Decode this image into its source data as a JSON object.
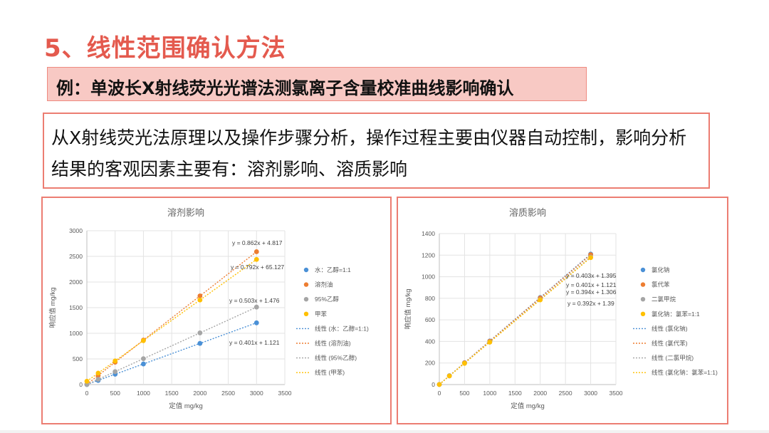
{
  "slide": {
    "title": "5、线性范围确认方法",
    "subtitle": "例：单波长X射线荧光光谱法测氯离子含量校准曲线影响确认",
    "description": "从X射线荧光法原理以及操作步骤分析，操作过程主要由仪器自动控制，影响分析结果的客观因素主要有：溶剂影响、溶质影响"
  },
  "chart_data": [
    {
      "type": "scatter",
      "title": "溶剂影响",
      "xlabel": "定值 mg/kg",
      "ylabel": "响应值 mg/kg",
      "xlim": [
        0,
        3500
      ],
      "ylim": [
        0,
        3000
      ],
      "xticks": [
        0,
        500,
        1000,
        1500,
        2000,
        2500,
        3000,
        3500
      ],
      "yticks": [
        0,
        500,
        1000,
        1500,
        2000,
        2500,
        3000
      ],
      "grid": true,
      "legend": "right",
      "series": [
        {
          "name": "水：乙醇=1:1",
          "color": "#4a90d6",
          "x": [
            0,
            200,
            500,
            1000,
            2000,
            3000
          ],
          "y": [
            1,
            81,
            202,
            402,
            803,
            1204
          ],
          "fit": {
            "slope": 0.401,
            "intercept": 1.121,
            "label": "y = 0.401x + 1.121",
            "legend": "线性 (水：乙醇=1:1)"
          }
        },
        {
          "name": "溶剂油",
          "color": "#ed7d31",
          "x": [
            0,
            200,
            500,
            1000,
            2000,
            3000
          ],
          "y": [
            5,
            177,
            436,
            867,
            1729,
            2591
          ],
          "fit": {
            "slope": 0.862,
            "intercept": 4.817,
            "label": "y = 0.862x + 4.817",
            "legend": "线性 (溶剂油)"
          }
        },
        {
          "name": "95%乙醇",
          "color": "#a5a5a5",
          "x": [
            0,
            200,
            500,
            1000,
            2000,
            3000
          ],
          "y": [
            1,
            102,
            253,
            505,
            1008,
            1511
          ],
          "fit": {
            "slope": 0.503,
            "intercept": 1.476,
            "label": "y = 0.503x + 1.476",
            "legend": "线性 (95%乙醇)"
          }
        },
        {
          "name": "甲苯",
          "color": "#ffc000",
          "x": [
            0,
            200,
            500,
            1000,
            2000,
            3000
          ],
          "y": [
            65,
            224,
            461,
            857,
            1649,
            2441
          ],
          "fit": {
            "slope": 0.792,
            "intercept": 65.127,
            "label": "y = 0.792x + 65.127",
            "legend": "线性 (甲苯)"
          }
        }
      ]
    },
    {
      "type": "scatter",
      "title": "溶质影响",
      "xlabel": "定值 mg/kg",
      "ylabel": "响应值 mg/kg",
      "xlim": [
        0,
        3500
      ],
      "ylim": [
        0,
        1400
      ],
      "xticks": [
        0,
        500,
        1000,
        1500,
        2000,
        2500,
        3000,
        3500
      ],
      "yticks": [
        0,
        200,
        400,
        600,
        800,
        1000,
        1200,
        1400
      ],
      "grid": true,
      "legend": "right",
      "series": [
        {
          "name": "氯化钠",
          "color": "#4a90d6",
          "x": [
            0,
            200,
            500,
            1000,
            2000,
            3000
          ],
          "y": [
            1,
            82,
            203,
            404,
            807,
            1210
          ],
          "fit": {
            "slope": 0.403,
            "intercept": 1.395,
            "label": "y = 0.403x + 1.395",
            "legend": "线性 (氯化钠)"
          }
        },
        {
          "name": "氯代苯",
          "color": "#ed7d31",
          "x": [
            0,
            200,
            500,
            1000,
            2000,
            3000
          ],
          "y": [
            1,
            81,
            202,
            402,
            803,
            1204
          ],
          "fit": {
            "slope": 0.401,
            "intercept": 1.121,
            "label": "y = 0.401x + 1.121",
            "legend": "线性 (氯代苯)"
          }
        },
        {
          "name": "二氯甲烷",
          "color": "#a5a5a5",
          "x": [
            0,
            200,
            500,
            1000,
            2000,
            3000
          ],
          "y": [
            1,
            80,
            198,
            395,
            789,
            1183
          ],
          "fit": {
            "slope": 0.394,
            "intercept": 1.306,
            "label": "y = 0.394x + 1.306",
            "legend": "线性 (二氯甲烷)"
          }
        },
        {
          "name": "氯化钠：氯苯=1:1",
          "color": "#ffc000",
          "x": [
            0,
            200,
            500,
            1000,
            2000,
            3000
          ],
          "y": [
            1,
            80,
            197,
            393,
            785,
            1177
          ],
          "fit": {
            "slope": 0.392,
            "intercept": 1.39,
            "label": "y = 0.392x + 1.39",
            "legend": "线性 (氯化钠：氯苯=1:1)"
          }
        }
      ]
    }
  ]
}
